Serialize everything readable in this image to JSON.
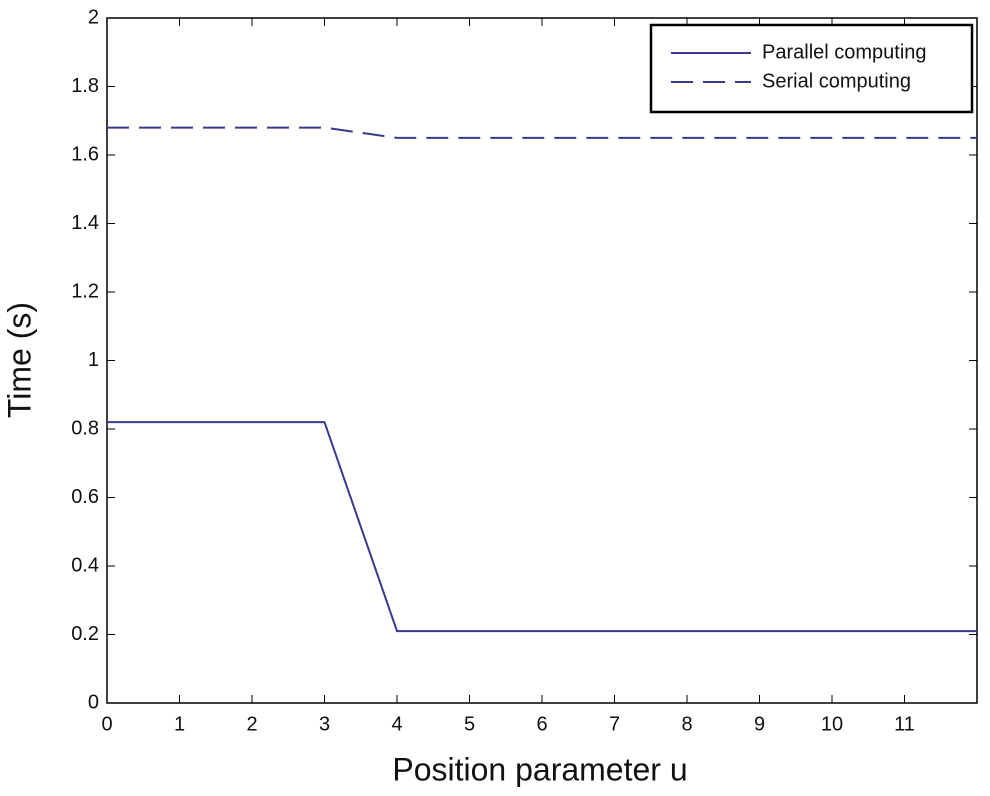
{
  "chart_data": {
    "type": "line",
    "xlabel": "Position parameter u",
    "ylabel": "Time (s)",
    "x": [
      0,
      3,
      4,
      12
    ],
    "series": [
      {
        "name": "Parallel computing",
        "color": "#3a3a8c",
        "style": "solid",
        "values": [
          0.82,
          0.82,
          0.21,
          0.21
        ]
      },
      {
        "name": "Serial computing",
        "color": "#3a3a8c",
        "style": "dashed",
        "values": [
          1.68,
          1.68,
          1.65,
          1.65
        ]
      }
    ],
    "xlim": [
      0,
      12
    ],
    "xticks": [
      0,
      1,
      2,
      3,
      4,
      5,
      6,
      7,
      8,
      9,
      10,
      11
    ],
    "ylim": [
      0,
      2
    ],
    "yticks": [
      0,
      0.2,
      0.4,
      0.6,
      0.8,
      1,
      1.2,
      1.4,
      1.6,
      1.8,
      2
    ],
    "grid": false,
    "legend": "upper right"
  }
}
